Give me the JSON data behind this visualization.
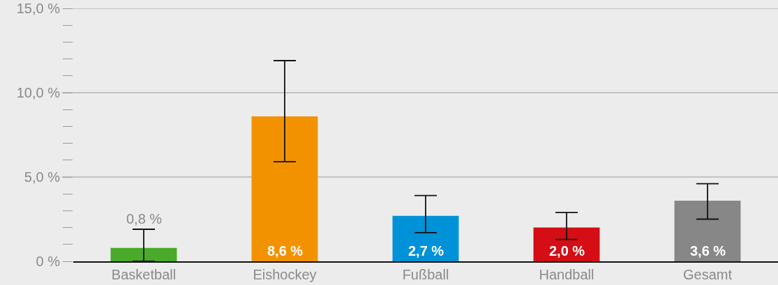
{
  "chart_data": {
    "type": "bar",
    "categories": [
      "Basketball",
      "Eishockey",
      "Fußball",
      "Handball",
      "Gesamt"
    ],
    "values": [
      0.8,
      8.6,
      2.7,
      2.0,
      3.6
    ],
    "colors": [
      "#4aaa2a",
      "#f39200",
      "#0092d8",
      "#d40e14",
      "#878787"
    ],
    "errors": [
      [
        0,
        1.9
      ],
      [
        5.9,
        11.9
      ],
      [
        1.7,
        3.9
      ],
      [
        1.3,
        2.9
      ],
      [
        2.5,
        4.6
      ]
    ],
    "value_labels": [
      "0,8 %",
      "8,6 %",
      "2,7 %",
      "2,0 %",
      "3,6 %"
    ],
    "ylim": [
      0,
      15
    ],
    "yticks": [
      {
        "value": 0,
        "label": "0 %"
      },
      {
        "value": 1,
        "label": null
      },
      {
        "value": 2,
        "label": null
      },
      {
        "value": 3,
        "label": null
      },
      {
        "value": 4,
        "label": null
      },
      {
        "value": 5,
        "label": "5,0 %"
      },
      {
        "value": 6,
        "label": null
      },
      {
        "value": 7,
        "label": null
      },
      {
        "value": 8,
        "label": null
      },
      {
        "value": 9,
        "label": null
      },
      {
        "value": 10,
        "label": "10,0 %"
      },
      {
        "value": 11,
        "label": null
      },
      {
        "value": 12,
        "label": null
      },
      {
        "value": 13,
        "label": null
      },
      {
        "value": 14,
        "label": null
      },
      {
        "value": 15,
        "label": "15,0 %"
      }
    ],
    "grid": "y"
  }
}
